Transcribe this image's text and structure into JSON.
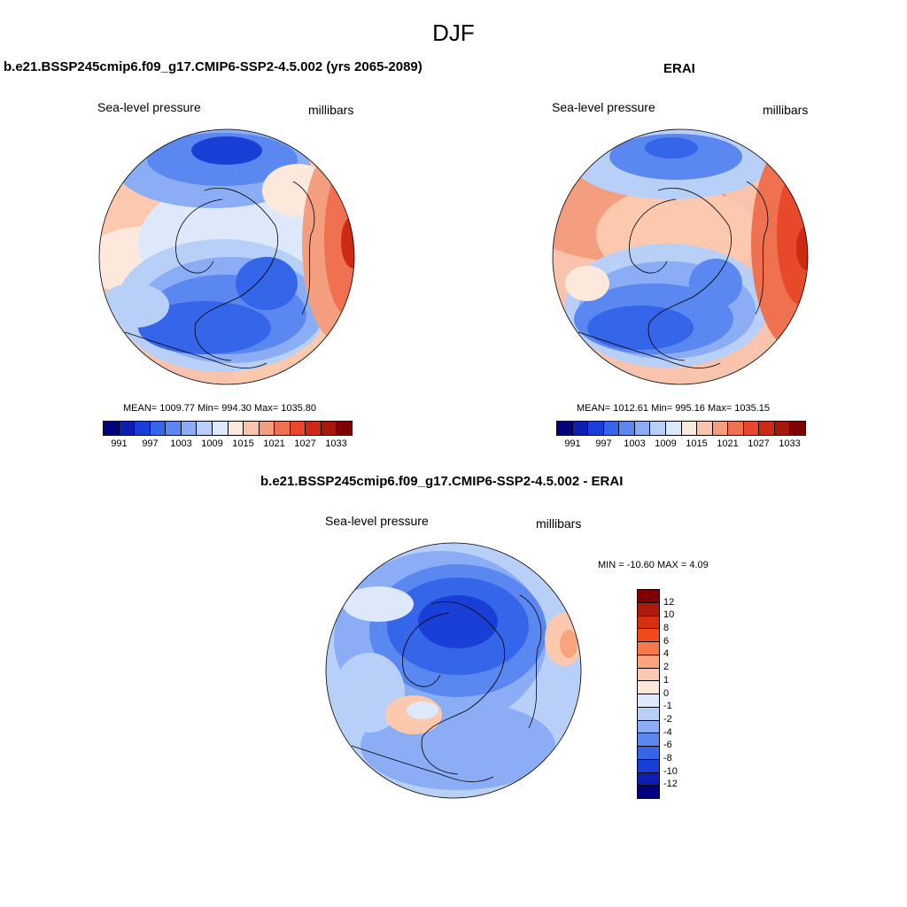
{
  "figure": {
    "season": "DJF"
  },
  "panels": [
    {
      "title": "b.e21.BSSP245cmip6.f09_g17.CMIP6-SSP2-4.5.002 (yrs 2065-2089)",
      "variable": "Sea-level pressure",
      "units": "millibars",
      "stats": "MEAN= 1009.77  Min= 994.30  Max= 1035.80",
      "colorbar_ticks": [
        "991",
        "997",
        "1003",
        "1009",
        "1015",
        "1021",
        "1027",
        "1033"
      ]
    },
    {
      "title": "ERAI",
      "variable": "Sea-level pressure",
      "units": "millibars",
      "stats": "MEAN= 1012.61  Min= 995.16  Max= 1035.15",
      "colorbar_ticks": [
        "991",
        "997",
        "1003",
        "1009",
        "1015",
        "1021",
        "1027",
        "1033"
      ]
    },
    {
      "title": "b.e21.BSSP245cmip6.f09_g17.CMIP6-SSP2-4.5.002 - ERAI",
      "variable": "Sea-level pressure",
      "units": "millibars",
      "stats": "MIN = -10.60 MAX =   4.09",
      "colorbar_ticks": [
        "12",
        "10",
        "8",
        "6",
        "4",
        "2",
        "1",
        "0",
        "-1",
        "-2",
        "-4",
        "-6",
        "-8",
        "-10",
        "-12"
      ]
    }
  ],
  "colors": {
    "absolute_palette": [
      "#00007f",
      "#0d1fb0",
      "#1a3fd6",
      "#3565e8",
      "#5b87f0",
      "#8aadf5",
      "#b8cff8",
      "#dde9fb",
      "#fde8dc",
      "#f9c4ae",
      "#f59d7f",
      "#f07150",
      "#e8492a",
      "#cc2a12",
      "#a8170b",
      "#7f0000"
    ],
    "difference_palette": [
      "#7f0000",
      "#b01a0a",
      "#d63010",
      "#f04a1a",
      "#f77a4a",
      "#f9a47e",
      "#fcc9ae",
      "#fde8dc",
      "#dde9fb",
      "#b8cff8",
      "#8aadf5",
      "#5b87f0",
      "#3565e8",
      "#1a3fd6",
      "#0d1fb0",
      "#00007f"
    ]
  }
}
